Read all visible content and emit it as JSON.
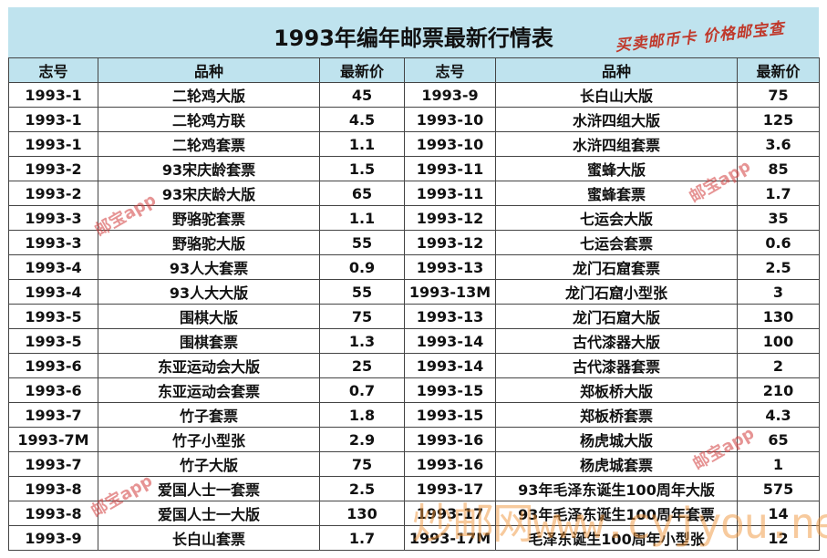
{
  "header": {
    "title": "1993年编年邮票最新行情表",
    "stamp": "买卖邮币卡 价格邮宝查"
  },
  "table": {
    "columns": [
      "志号",
      "品种",
      "最新价",
      "志号",
      "品种",
      "最新价"
    ],
    "rows": [
      [
        "1993-1",
        "二轮鸡大版",
        45,
        "1993-9",
        "长白山大版",
        75
      ],
      [
        "1993-1",
        "二轮鸡方联",
        4.5,
        "1993-10",
        "水浒四组大版",
        125
      ],
      [
        "1993-1",
        "二轮鸡套票",
        1.1,
        "1993-10",
        "水浒四组套票",
        3.6
      ],
      [
        "1993-2",
        "93宋庆龄套票",
        1.5,
        "1993-11",
        "蜜蜂大版",
        85
      ],
      [
        "1993-2",
        "93宋庆龄大版",
        65,
        "1993-11",
        "蜜蜂套票",
        1.7
      ],
      [
        "1993-3",
        "野骆驼套票",
        1.1,
        "1993-12",
        "七运会大版",
        35
      ],
      [
        "1993-3",
        "野骆驼大版",
        55,
        "1993-12",
        "七运会套票",
        0.6
      ],
      [
        "1993-4",
        "93人大套票",
        0.9,
        "1993-13",
        "龙门石窟套票",
        2.5
      ],
      [
        "1993-4",
        "93人大大版",
        55,
        "1993-13M",
        "龙门石窟小型张",
        3
      ],
      [
        "1993-5",
        "围棋大版",
        75,
        "1993-13",
        "龙门石窟大版",
        130
      ],
      [
        "1993-5",
        "围棋套票",
        1.3,
        "1993-14",
        "古代漆器大版",
        100
      ],
      [
        "1993-6",
        "东亚运动会大版",
        25,
        "1993-14",
        "古代漆器套票",
        2
      ],
      [
        "1993-6",
        "东亚运动会套票",
        0.7,
        "1993-15",
        "郑板桥大版",
        210
      ],
      [
        "1993-7",
        "竹子套票",
        1.8,
        "1993-15",
        "郑板桥套票",
        4.3
      ],
      [
        "1993-7M",
        "竹子小型张",
        2.9,
        "1993-16",
        "杨虎城大版",
        65
      ],
      [
        "1993-7",
        "竹子大版",
        75,
        "1993-16",
        "杨虎城套票",
        1
      ],
      [
        "1993-8",
        "爱国人士一套票",
        2.5,
        "1993-17",
        "93年毛泽东诞生100周年大版",
        575
      ],
      [
        "1993-8",
        "爱国人士一大版",
        130,
        "1993-17",
        "93年毛泽东诞生100周年套票",
        14
      ],
      [
        "1993-9",
        "长白山套票",
        1.7,
        "1993-17M",
        "毛泽东诞生100周年小型张",
        12
      ]
    ]
  },
  "watermarks": {
    "app": "邮宝app",
    "site": "炒邮网www.cyjyou.net"
  }
}
